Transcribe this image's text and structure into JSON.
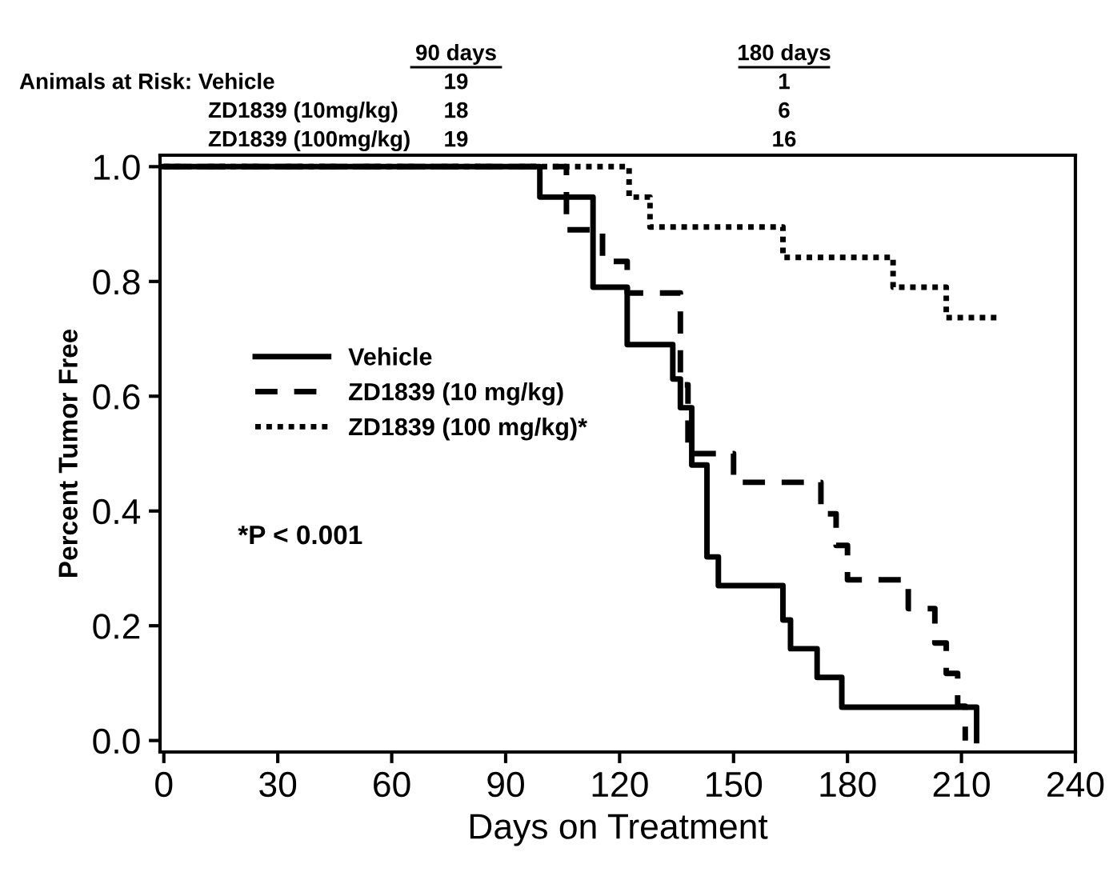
{
  "chart_data": {
    "type": "step",
    "xlabel": "Days on Treatment",
    "ylabel": "Percent Tumor Free",
    "xlim": [
      -1,
      240
    ],
    "xticks": [
      0,
      30,
      60,
      90,
      120,
      150,
      180,
      210,
      240
    ],
    "ylim": [
      -0.02,
      1.02
    ],
    "yticks": [
      {
        "value": 0,
        "label": "0.0"
      },
      0.2,
      0.4,
      0.6,
      0.8,
      {
        "value": 1,
        "label": "1.0"
      }
    ],
    "grid": false,
    "legend": "left",
    "marker": "none",
    "series": [
      {
        "name": "Vehicle",
        "color": "#000000",
        "line_style": "solid",
        "x": [
          0,
          99,
          113,
          122,
          134,
          136,
          139,
          143,
          146,
          163,
          165,
          172,
          178.5,
          214
        ],
        "values": [
          1.0,
          0.947,
          0.79,
          0.69,
          0.63,
          0.58,
          0.48,
          0.32,
          0.27,
          0.21,
          0.16,
          0.11,
          0.058,
          0.0
        ]
      },
      {
        "name": "ZD1839 (10 mg/kg)",
        "color": "#000000",
        "line_style": "dashed",
        "x": [
          0,
          106,
          115.5,
          122,
          136,
          138,
          150,
          173,
          177,
          180,
          196,
          203,
          206,
          209,
          211
        ],
        "values": [
          1.0,
          0.89,
          0.835,
          0.78,
          0.62,
          0.5,
          0.45,
          0.395,
          0.34,
          0.28,
          0.23,
          0.17,
          0.117,
          0.06,
          0.0
        ]
      },
      {
        "name": "ZD1839 (100 mg/kg)*",
        "color": "#000000",
        "line_style": "dotted",
        "x": [
          0,
          122.5,
          128,
          163,
          192,
          206,
          220
        ],
        "values": [
          1.0,
          0.947,
          0.895,
          0.842,
          0.79,
          0.737,
          0.737
        ]
      }
    ],
    "annotations": [
      "90 days",
      "180 days",
      "Animals at Risk: Vehicle",
      "19",
      "1",
      "ZD1839 (10mg/kg)",
      "18",
      "6",
      "ZD1839 (100mg/kg)",
      "19",
      "16",
      "*P < 0.001"
    ]
  }
}
